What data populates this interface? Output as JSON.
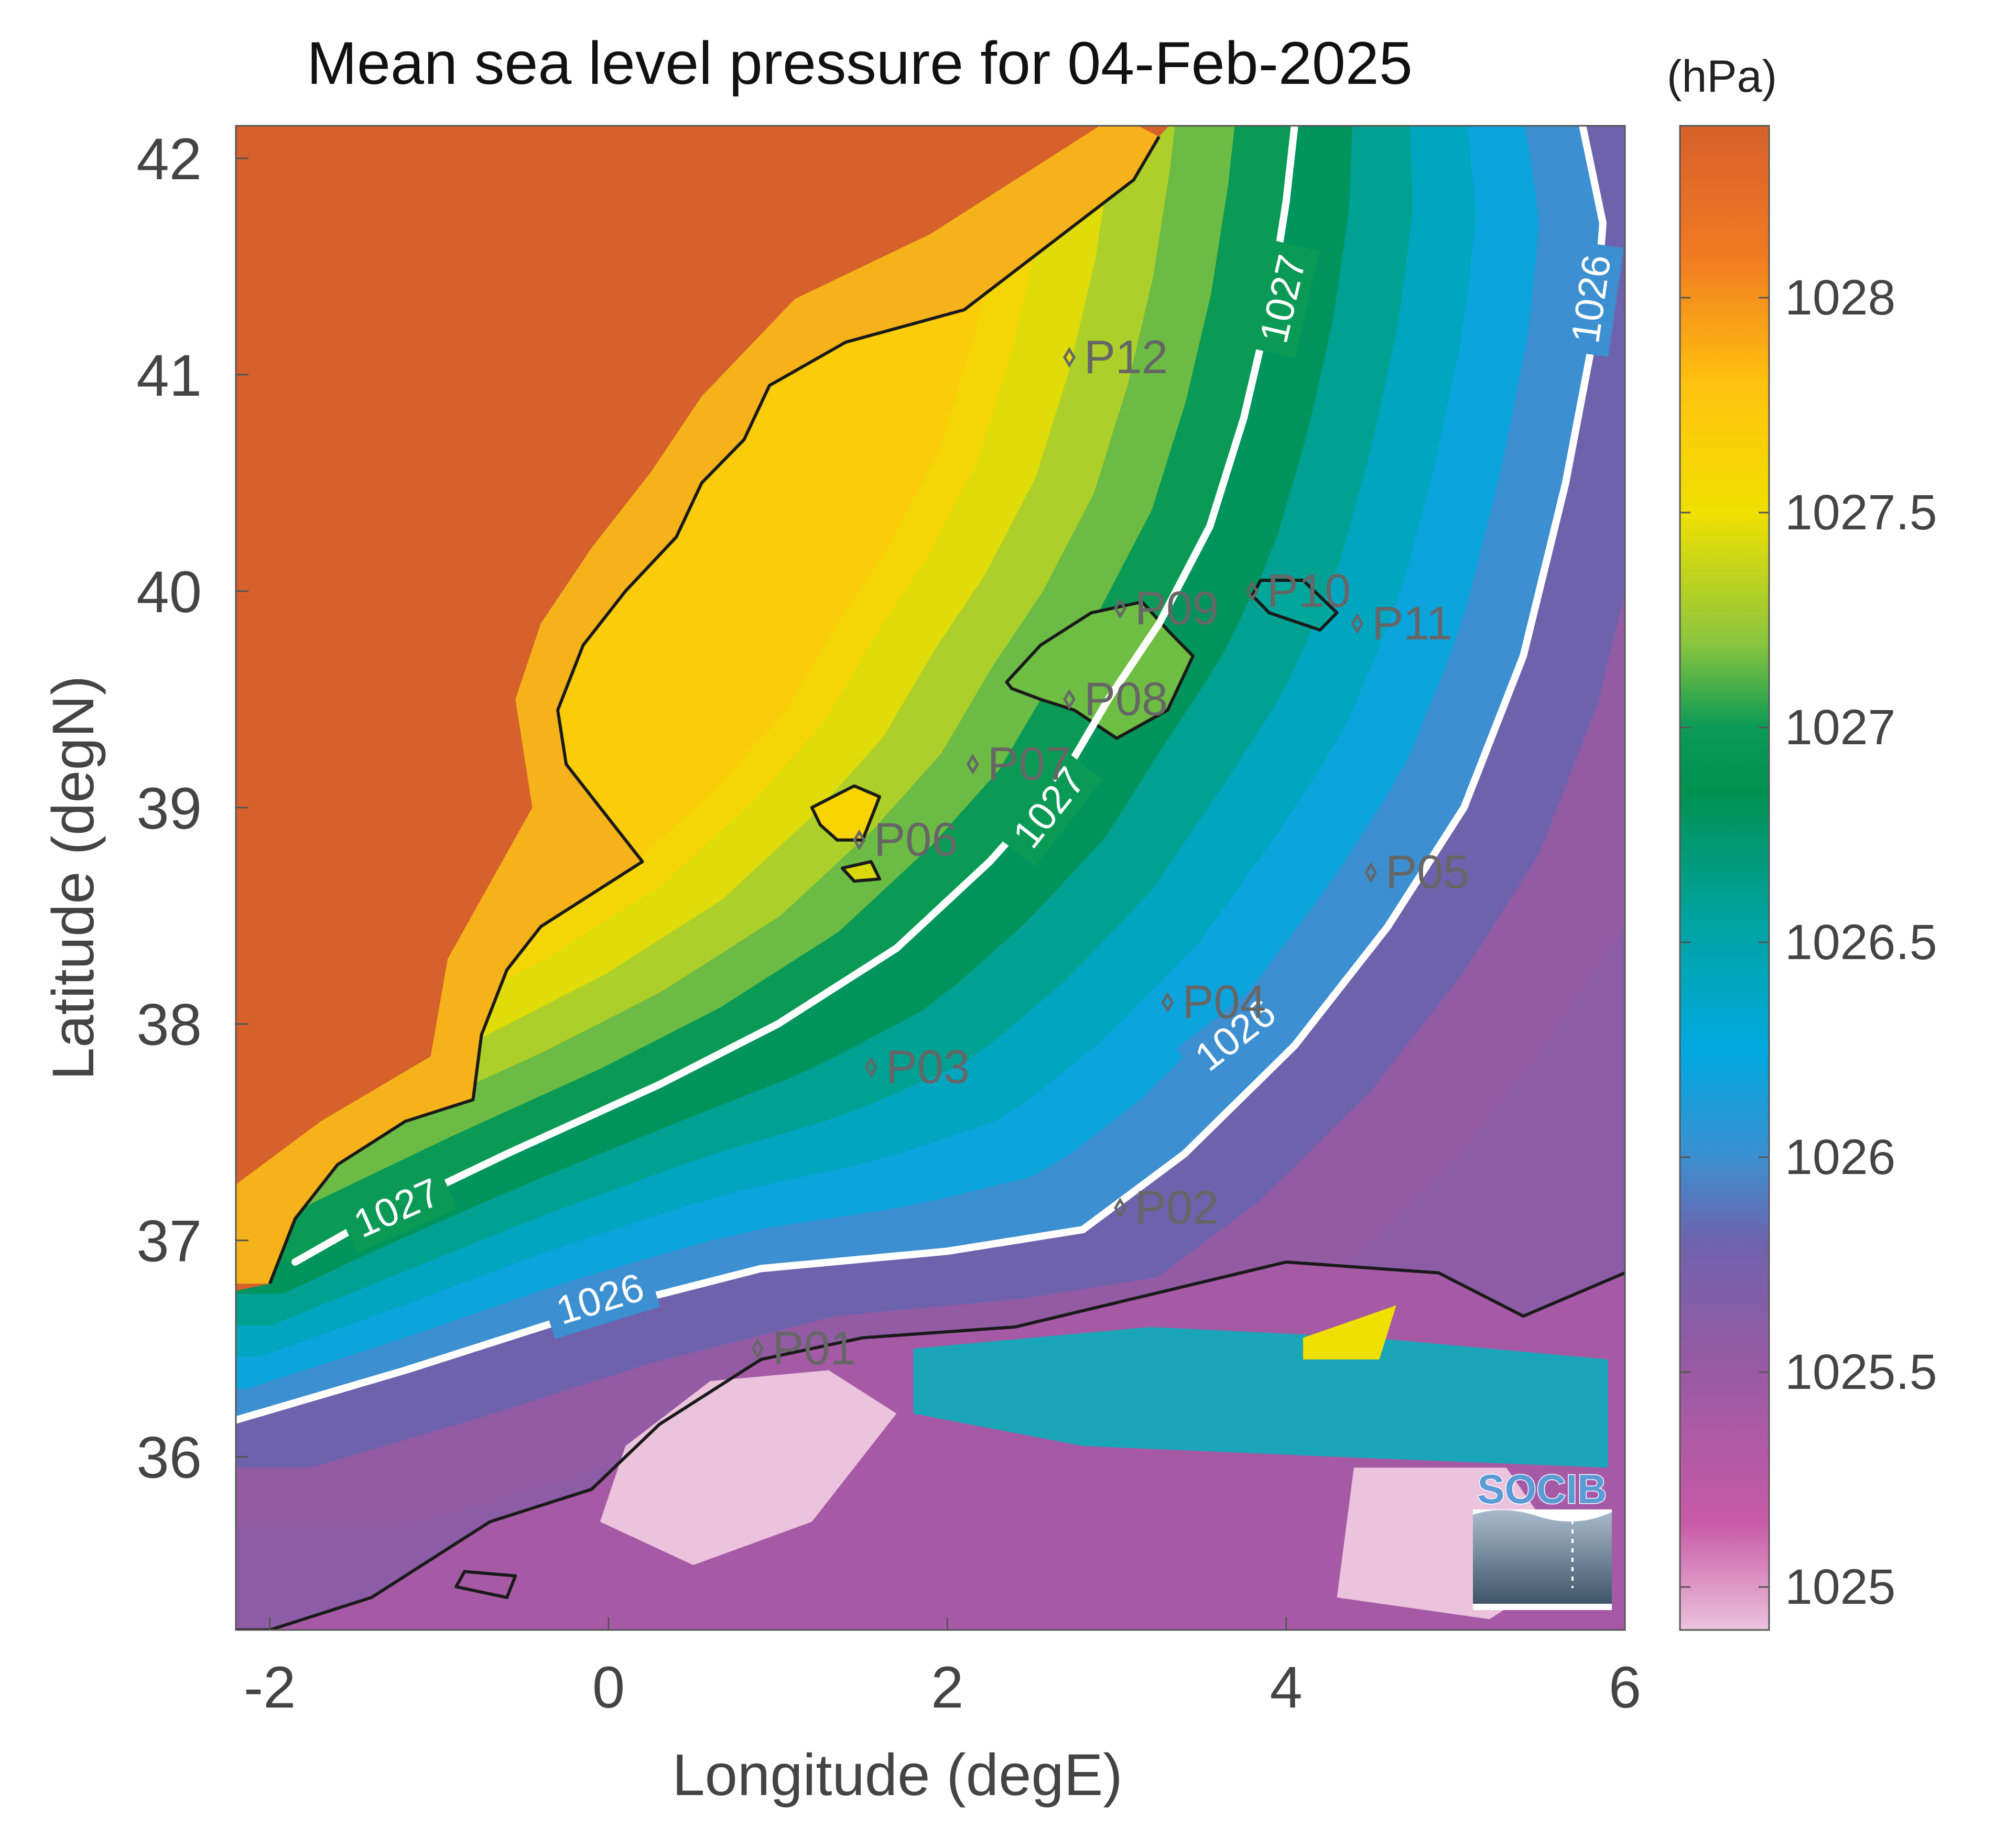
{
  "title": "Mean sea level pressure for 04-Feb-2025",
  "units_label": "(hPa)",
  "x_axis": {
    "label": "Longitude (degE)",
    "range": [
      -2.2,
      6
    ],
    "ticks": [
      {
        "value": -2,
        "label": "-2"
      },
      {
        "value": 0,
        "label": "0"
      },
      {
        "value": 2,
        "label": "2"
      },
      {
        "value": 4,
        "label": "4"
      },
      {
        "value": 6,
        "label": "6"
      }
    ]
  },
  "y_axis": {
    "label": "Latitude (degN)",
    "range": [
      35.2,
      42.15
    ],
    "ticks": [
      {
        "value": 36,
        "label": "36"
      },
      {
        "value": 37,
        "label": "37"
      },
      {
        "value": 38,
        "label": "38"
      },
      {
        "value": 39,
        "label": "39"
      },
      {
        "value": 40,
        "label": "40"
      },
      {
        "value": 41,
        "label": "41"
      },
      {
        "value": 42,
        "label": "42"
      }
    ]
  },
  "colorbar": {
    "range": [
      1024.9,
      1028.4
    ],
    "ticks": [
      {
        "value": 1025,
        "label": "1025"
      },
      {
        "value": 1025.5,
        "label": "1025.5"
      },
      {
        "value": 1026,
        "label": "1026"
      },
      {
        "value": 1026.5,
        "label": "1026.5"
      },
      {
        "value": 1027,
        "label": "1027"
      },
      {
        "value": 1027.5,
        "label": "1027.5"
      },
      {
        "value": 1028,
        "label": "1028"
      }
    ],
    "stops": [
      {
        "value": 1024.9,
        "color": "#ebc3dd"
      },
      {
        "value": 1025.15,
        "color": "#c85aa6"
      },
      {
        "value": 1025.5,
        "color": "#9a5aa3"
      },
      {
        "value": 1025.8,
        "color": "#6f62ac"
      },
      {
        "value": 1026.0,
        "color": "#3c8fd0"
      },
      {
        "value": 1026.25,
        "color": "#00a9e0"
      },
      {
        "value": 1026.55,
        "color": "#00a3a0"
      },
      {
        "value": 1026.85,
        "color": "#009150"
      },
      {
        "value": 1027.0,
        "color": "#0a9a55"
      },
      {
        "value": 1027.2,
        "color": "#8cc63e"
      },
      {
        "value": 1027.5,
        "color": "#f0e000"
      },
      {
        "value": 1027.8,
        "color": "#ffc20e"
      },
      {
        "value": 1028.1,
        "color": "#f07a21"
      },
      {
        "value": 1028.4,
        "color": "#d6612b"
      }
    ]
  },
  "contours": [
    {
      "level_label": "1027",
      "points": [
        [
          -1.85,
          36.9
        ],
        [
          -1.4,
          37.1
        ],
        [
          -0.6,
          37.4
        ],
        [
          0.3,
          37.72
        ],
        [
          1.0,
          38.0
        ],
        [
          1.7,
          38.35
        ],
        [
          2.25,
          38.75
        ],
        [
          2.65,
          39.1
        ],
        [
          2.95,
          39.5
        ],
        [
          3.25,
          39.85
        ],
        [
          3.55,
          40.3
        ],
        [
          3.75,
          40.8
        ],
        [
          3.9,
          41.3
        ],
        [
          4.0,
          41.8
        ],
        [
          4.05,
          42.15
        ]
      ],
      "label_positions": [
        [
          -1.25,
          37.15,
          24
        ],
        [
          2.6,
          39.0,
          52
        ],
        [
          3.98,
          41.35,
          77
        ]
      ]
    },
    {
      "level_label": "1026",
      "points": [
        [
          -2.2,
          36.17
        ],
        [
          -1.2,
          36.4
        ],
        [
          -0.2,
          36.65
        ],
        [
          0.9,
          36.87
        ],
        [
          2.0,
          36.95
        ],
        [
          2.8,
          37.05
        ],
        [
          3.4,
          37.4
        ],
        [
          4.05,
          37.9
        ],
        [
          4.6,
          38.45
        ],
        [
          5.05,
          39.0
        ],
        [
          5.4,
          39.7
        ],
        [
          5.65,
          40.5
        ],
        [
          5.82,
          41.2
        ],
        [
          5.87,
          41.7
        ],
        [
          5.75,
          42.15
        ]
      ],
      "label_positions": [
        [
          -0.05,
          36.73,
          17
        ],
        [
          3.7,
          37.95,
          38
        ],
        [
          5.8,
          41.35,
          82
        ]
      ]
    }
  ],
  "stations": [
    {
      "id": "P01",
      "lon": 0.88,
      "lat": 36.5
    },
    {
      "id": "P02",
      "lon": 3.02,
      "lat": 37.15
    },
    {
      "id": "P03",
      "lon": 1.55,
      "lat": 37.8
    },
    {
      "id": "P04",
      "lon": 3.3,
      "lat": 38.1
    },
    {
      "id": "P05",
      "lon": 4.5,
      "lat": 38.7
    },
    {
      "id": "P06",
      "lon": 1.48,
      "lat": 38.85
    },
    {
      "id": "P07",
      "lon": 2.15,
      "lat": 39.2
    },
    {
      "id": "P08",
      "lon": 2.72,
      "lat": 39.5
    },
    {
      "id": "P09",
      "lon": 3.02,
      "lat": 39.92
    },
    {
      "id": "P10",
      "lon": 3.8,
      "lat": 40.0
    },
    {
      "id": "P11",
      "lon": 4.42,
      "lat": 39.85
    },
    {
      "id": "P12",
      "lon": 2.72,
      "lat": 41.08
    }
  ],
  "logo": {
    "text": "SOCIB"
  },
  "colors": {
    "land_north": "#d6612b",
    "coastline": "#1a1a1a",
    "contour_line": "#ffffff",
    "station_marker": "#666666",
    "axis_text": "#444444",
    "logo_blue": "#5b9bd5"
  }
}
